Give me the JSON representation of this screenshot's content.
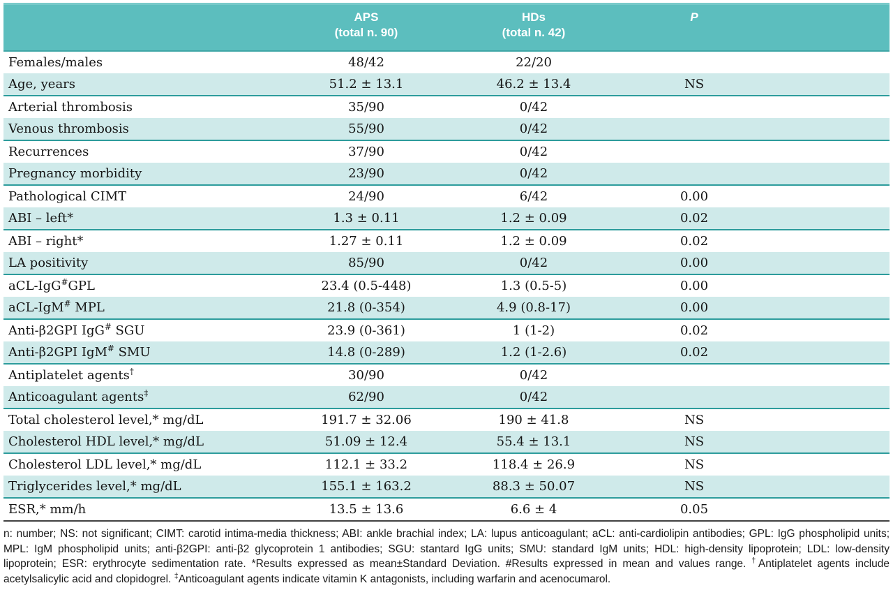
{
  "colors": {
    "header_teal": "#5cbebe",
    "header_top_edge": "#78caca",
    "header_bottom_rule": "#3fa6a6",
    "row_tint": "#cfeaea",
    "divider_teal": "#2d9c9c",
    "bottom_rule_dark": "#414141",
    "header_text": "#ffffff",
    "body_text": "#161616"
  },
  "header": {
    "columns": [
      {
        "line1": "",
        "line2": ""
      },
      {
        "line1": "APS",
        "line2": "(total n. 90)"
      },
      {
        "line1": "HDs",
        "line2": "(total n. 42)"
      },
      {
        "line1": "P",
        "line2": ""
      }
    ]
  },
  "table": {
    "rows": [
      {
        "label": [
          {
            "t": "Females/males"
          }
        ],
        "aps": "48/42",
        "hds": "22/20",
        "p": ""
      },
      {
        "label": [
          {
            "t": "Age, years"
          }
        ],
        "aps": "51.2 ± 13.1",
        "hds": "46.2 ± 13.4",
        "p": "NS"
      },
      {
        "label": [
          {
            "t": "Arterial thrombosis"
          }
        ],
        "aps": "35/90",
        "hds": "0/42",
        "p": ""
      },
      {
        "label": [
          {
            "t": "Venous thrombosis"
          }
        ],
        "aps": "55/90",
        "hds": "0/42",
        "p": ""
      },
      {
        "label": [
          {
            "t": "Recurrences"
          }
        ],
        "aps": "37/90",
        "hds": "0/42",
        "p": ""
      },
      {
        "label": [
          {
            "t": "Pregnancy morbidity"
          }
        ],
        "aps": "23/90",
        "hds": "0/42",
        "p": ""
      },
      {
        "label": [
          {
            "t": "Pathological CIMT"
          }
        ],
        "aps": "24/90",
        "hds": "6/42",
        "p": "0.00"
      },
      {
        "label": [
          {
            "t": "ABI – left*"
          }
        ],
        "aps": "1.3 ± 0.11",
        "hds": "1.2 ± 0.09",
        "p": "0.02"
      },
      {
        "label": [
          {
            "t": "ABI – right*"
          }
        ],
        "aps": "1.27 ± 0.11",
        "hds": "1.2 ± 0.09",
        "p": "0.02"
      },
      {
        "label": [
          {
            "t": "LA positivity"
          }
        ],
        "aps": "85/90",
        "hds": "0/42",
        "p": "0.00"
      },
      {
        "label": [
          {
            "t": "aCL-IgG"
          },
          {
            "t": "#",
            "sup": true
          },
          {
            "t": "GPL"
          }
        ],
        "aps": "23.4 (0.5-448)",
        "hds": "1.3 (0.5-5)",
        "p": "0.00"
      },
      {
        "label": [
          {
            "t": "aCL-IgM"
          },
          {
            "t": "#",
            "sup": true
          },
          {
            "t": " MPL"
          }
        ],
        "aps": "21.8 (0-354)",
        "hds": "4.9 (0.8-17)",
        "p": "0.00"
      },
      {
        "label": [
          {
            "t": "Anti-β2GPI IgG"
          },
          {
            "t": "#",
            "sup": true
          },
          {
            "t": " SGU"
          }
        ],
        "aps": "23.9 (0-361)",
        "hds": "1 (1-2)",
        "p": "0.02"
      },
      {
        "label": [
          {
            "t": "Anti-β2GPI IgM"
          },
          {
            "t": "#",
            "sup": true
          },
          {
            "t": " SMU"
          }
        ],
        "aps": "14.8 (0-289)",
        "hds": "1.2 (1-2.6)",
        "p": "0.02"
      },
      {
        "label": [
          {
            "t": "Antiplatelet agents"
          },
          {
            "t": "†",
            "sup": true
          }
        ],
        "aps": "30/90",
        "hds": "0/42",
        "p": ""
      },
      {
        "label": [
          {
            "t": "Anticoagulant agents"
          },
          {
            "t": "‡",
            "sup": true
          }
        ],
        "aps": "62/90",
        "hds": "0/42",
        "p": ""
      },
      {
        "label": [
          {
            "t": "Total cholesterol level,* mg/dL"
          }
        ],
        "aps": "191.7 ± 32.06",
        "hds": "190 ± 41.8",
        "p": "NS"
      },
      {
        "label": [
          {
            "t": "Cholesterol HDL level,* mg/dL"
          }
        ],
        "aps": "51.09 ± 12.4",
        "hds": "55.4 ± 13.1",
        "p": "NS"
      },
      {
        "label": [
          {
            "t": "Cholesterol LDL level,* mg/dL"
          }
        ],
        "aps": "112.1 ± 33.2",
        "hds": "118.4 ± 26.9",
        "p": "NS"
      },
      {
        "label": [
          {
            "t": "Triglycerides level,* mg/dL"
          }
        ],
        "aps": "155.1 ± 163.2",
        "hds": "88.3 ± 50.07",
        "p": "NS"
      },
      {
        "label": [
          {
            "t": "ESR,* mm/h"
          }
        ],
        "aps": "13.5 ± 13.6",
        "hds": "6.6 ± 4",
        "p": "0.05"
      }
    ]
  },
  "footnote": {
    "segments": [
      {
        "t": "n: number; NS: not significant; CIMT: carotid intima-media thickness; ABI: ankle brachial index; LA: lupus anticoagulant; aCL: anti-cardiolipin antibodies; GPL: IgG phospholipid units; MPL: IgM phospholipid units; anti-β2GPI: anti-β2 glycoprotein 1 antibodies; SGU: stantard IgG units; SMU: standard IgM units; HDL: high-density lipoprotein; LDL: low-density lipoprotein; ESR: erythrocyte sedimentation rate. *Results expressed as mean±Standard Deviation. #Results expressed in mean and values range. "
      },
      {
        "t": "†",
        "sup": true
      },
      {
        "t": "Antiplatelet agents include acetylsalicylic acid and clopidogrel. "
      },
      {
        "t": "‡",
        "sup": true
      },
      {
        "t": "Anticoagulant agents indicate vitamin K antagonists, including warfarin and acenocumarol."
      }
    ]
  }
}
